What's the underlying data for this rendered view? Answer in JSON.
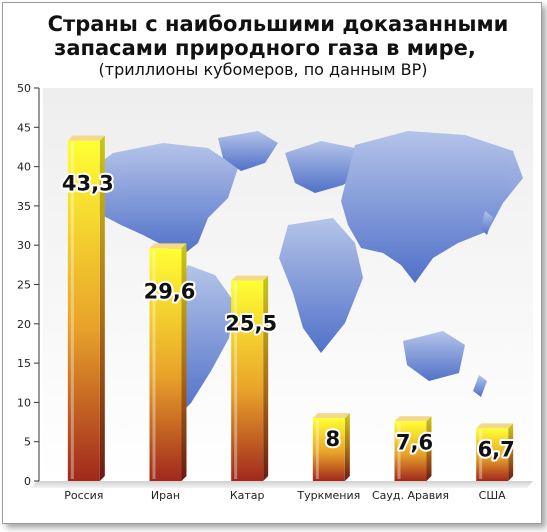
{
  "chart_data": {
    "type": "bar",
    "title_lines": [
      "Страны с наибольшими доказанными",
      "запасами природного газа в мире,"
    ],
    "subtitle": "(триллионы кубомеров, по данным BP)",
    "xlabel": "",
    "ylabel": "",
    "categories": [
      "Россия",
      "Иран",
      "Катар",
      "Туркмения",
      "Сауд. Аравия",
      "США"
    ],
    "values": [
      43.3,
      29.6,
      25.5,
      8,
      7.6,
      6.7
    ],
    "value_labels": [
      "43,3",
      "29,6",
      "25,5",
      "8",
      "7,6",
      "6,7"
    ],
    "yticks": [
      "0",
      "5",
      "10",
      "15",
      "20",
      "25",
      "30",
      "35",
      "40",
      "45",
      "50"
    ],
    "ylim": [
      0,
      50
    ],
    "grid": false,
    "legend": "none",
    "background": "world-map",
    "colors": {
      "bar_top": "#ffff33",
      "bar_bottom": "#a0281c",
      "map": "#5f7fd6",
      "plot_bg_top": "#f2f2f2",
      "plot_bg_bottom": "#ffffff"
    }
  }
}
